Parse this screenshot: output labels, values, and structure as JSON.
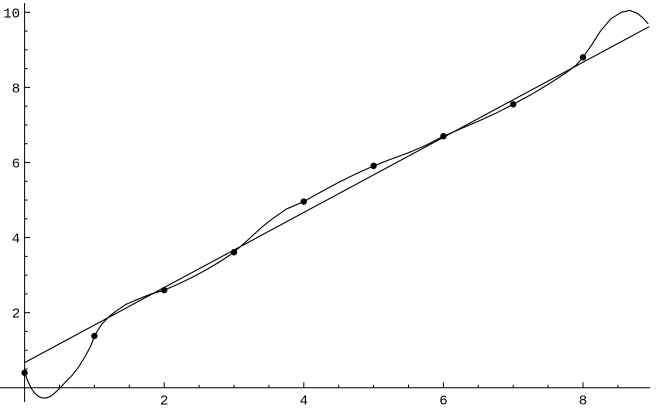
{
  "chart_data": {
    "type": "scatter",
    "title": "",
    "xlabel": "",
    "ylabel": "",
    "xlim": [
      0,
      9.2
    ],
    "ylim": [
      -0.45,
      10.3
    ],
    "grid": false,
    "legend": false,
    "series": [
      {
        "name": "data-points",
        "style": "filled-black-dots",
        "x": [
          0,
          1,
          2,
          3,
          4,
          5,
          6,
          7,
          8
        ],
        "y": [
          0.4,
          1.38,
          2.6,
          3.61,
          4.96,
          5.91,
          6.7,
          7.55,
          8.8
        ]
      },
      {
        "name": "linear-fit-line",
        "style": "straight-line",
        "x": [
          0,
          8.95
        ],
        "y": [
          0.67,
          9.62
        ]
      },
      {
        "name": "interpolating-polynomial-curve",
        "style": "curve",
        "points": [
          [
            0,
            0.4
          ],
          [
            0.05,
            0.16
          ],
          [
            0.1,
            -0.03
          ],
          [
            0.15,
            -0.15
          ],
          [
            0.2,
            -0.23
          ],
          [
            0.25,
            -0.27
          ],
          [
            0.31,
            -0.27
          ],
          [
            0.37,
            -0.23
          ],
          [
            0.42,
            -0.16
          ],
          [
            0.5,
            -0.02
          ],
          [
            0.58,
            0.14
          ],
          [
            0.68,
            0.33
          ],
          [
            0.78,
            0.57
          ],
          [
            0.88,
            0.88
          ],
          [
            0.95,
            1.12
          ],
          [
            1.0,
            1.38
          ],
          [
            1.1,
            1.68
          ],
          [
            1.2,
            1.88
          ],
          [
            1.3,
            2.03
          ],
          [
            1.45,
            2.22
          ],
          [
            1.6,
            2.34
          ],
          [
            1.8,
            2.49
          ],
          [
            2.0,
            2.6
          ],
          [
            2.2,
            2.76
          ],
          [
            2.4,
            2.94
          ],
          [
            2.6,
            3.14
          ],
          [
            2.8,
            3.36
          ],
          [
            3.0,
            3.61
          ],
          [
            3.2,
            3.94
          ],
          [
            3.4,
            4.28
          ],
          [
            3.55,
            4.5
          ],
          [
            3.75,
            4.76
          ],
          [
            4.0,
            4.96
          ],
          [
            4.25,
            5.22
          ],
          [
            4.5,
            5.47
          ],
          [
            4.75,
            5.7
          ],
          [
            5.0,
            5.91
          ],
          [
            5.25,
            6.09
          ],
          [
            5.5,
            6.26
          ],
          [
            5.75,
            6.46
          ],
          [
            6.0,
            6.7
          ],
          [
            6.25,
            6.9
          ],
          [
            6.5,
            7.1
          ],
          [
            6.75,
            7.31
          ],
          [
            7.0,
            7.55
          ],
          [
            7.25,
            7.8
          ],
          [
            7.5,
            8.08
          ],
          [
            7.75,
            8.38
          ],
          [
            7.9,
            8.59
          ],
          [
            8.0,
            8.8
          ],
          [
            8.12,
            9.12
          ],
          [
            8.25,
            9.5
          ],
          [
            8.4,
            9.83
          ],
          [
            8.55,
            10.0
          ],
          [
            8.67,
            10.05
          ],
          [
            8.78,
            9.97
          ],
          [
            8.86,
            9.85
          ],
          [
            8.93,
            9.7
          ]
        ]
      }
    ],
    "x_axis": {
      "major_ticks": [
        2,
        4,
        6,
        8
      ],
      "major_labels": [
        "2",
        "4",
        "6",
        "8"
      ],
      "minor_ticks": [
        0.5,
        1,
        1.5,
        2.5,
        3,
        3.5,
        4.5,
        5,
        5.5,
        6.5,
        7,
        7.5,
        8.5
      ]
    },
    "y_axis": {
      "major_ticks": [
        2,
        4,
        6,
        8,
        10
      ],
      "major_labels": [
        "2",
        "4",
        "6",
        "8",
        "10"
      ],
      "minor_ticks": [
        0.5,
        1,
        1.5,
        2.5,
        3,
        3.5,
        4.5,
        5,
        5.5,
        6.5,
        7,
        7.5,
        8.5,
        9,
        9.5
      ]
    },
    "colors": {
      "foreground": "#000000",
      "background": "#ffffff"
    }
  }
}
